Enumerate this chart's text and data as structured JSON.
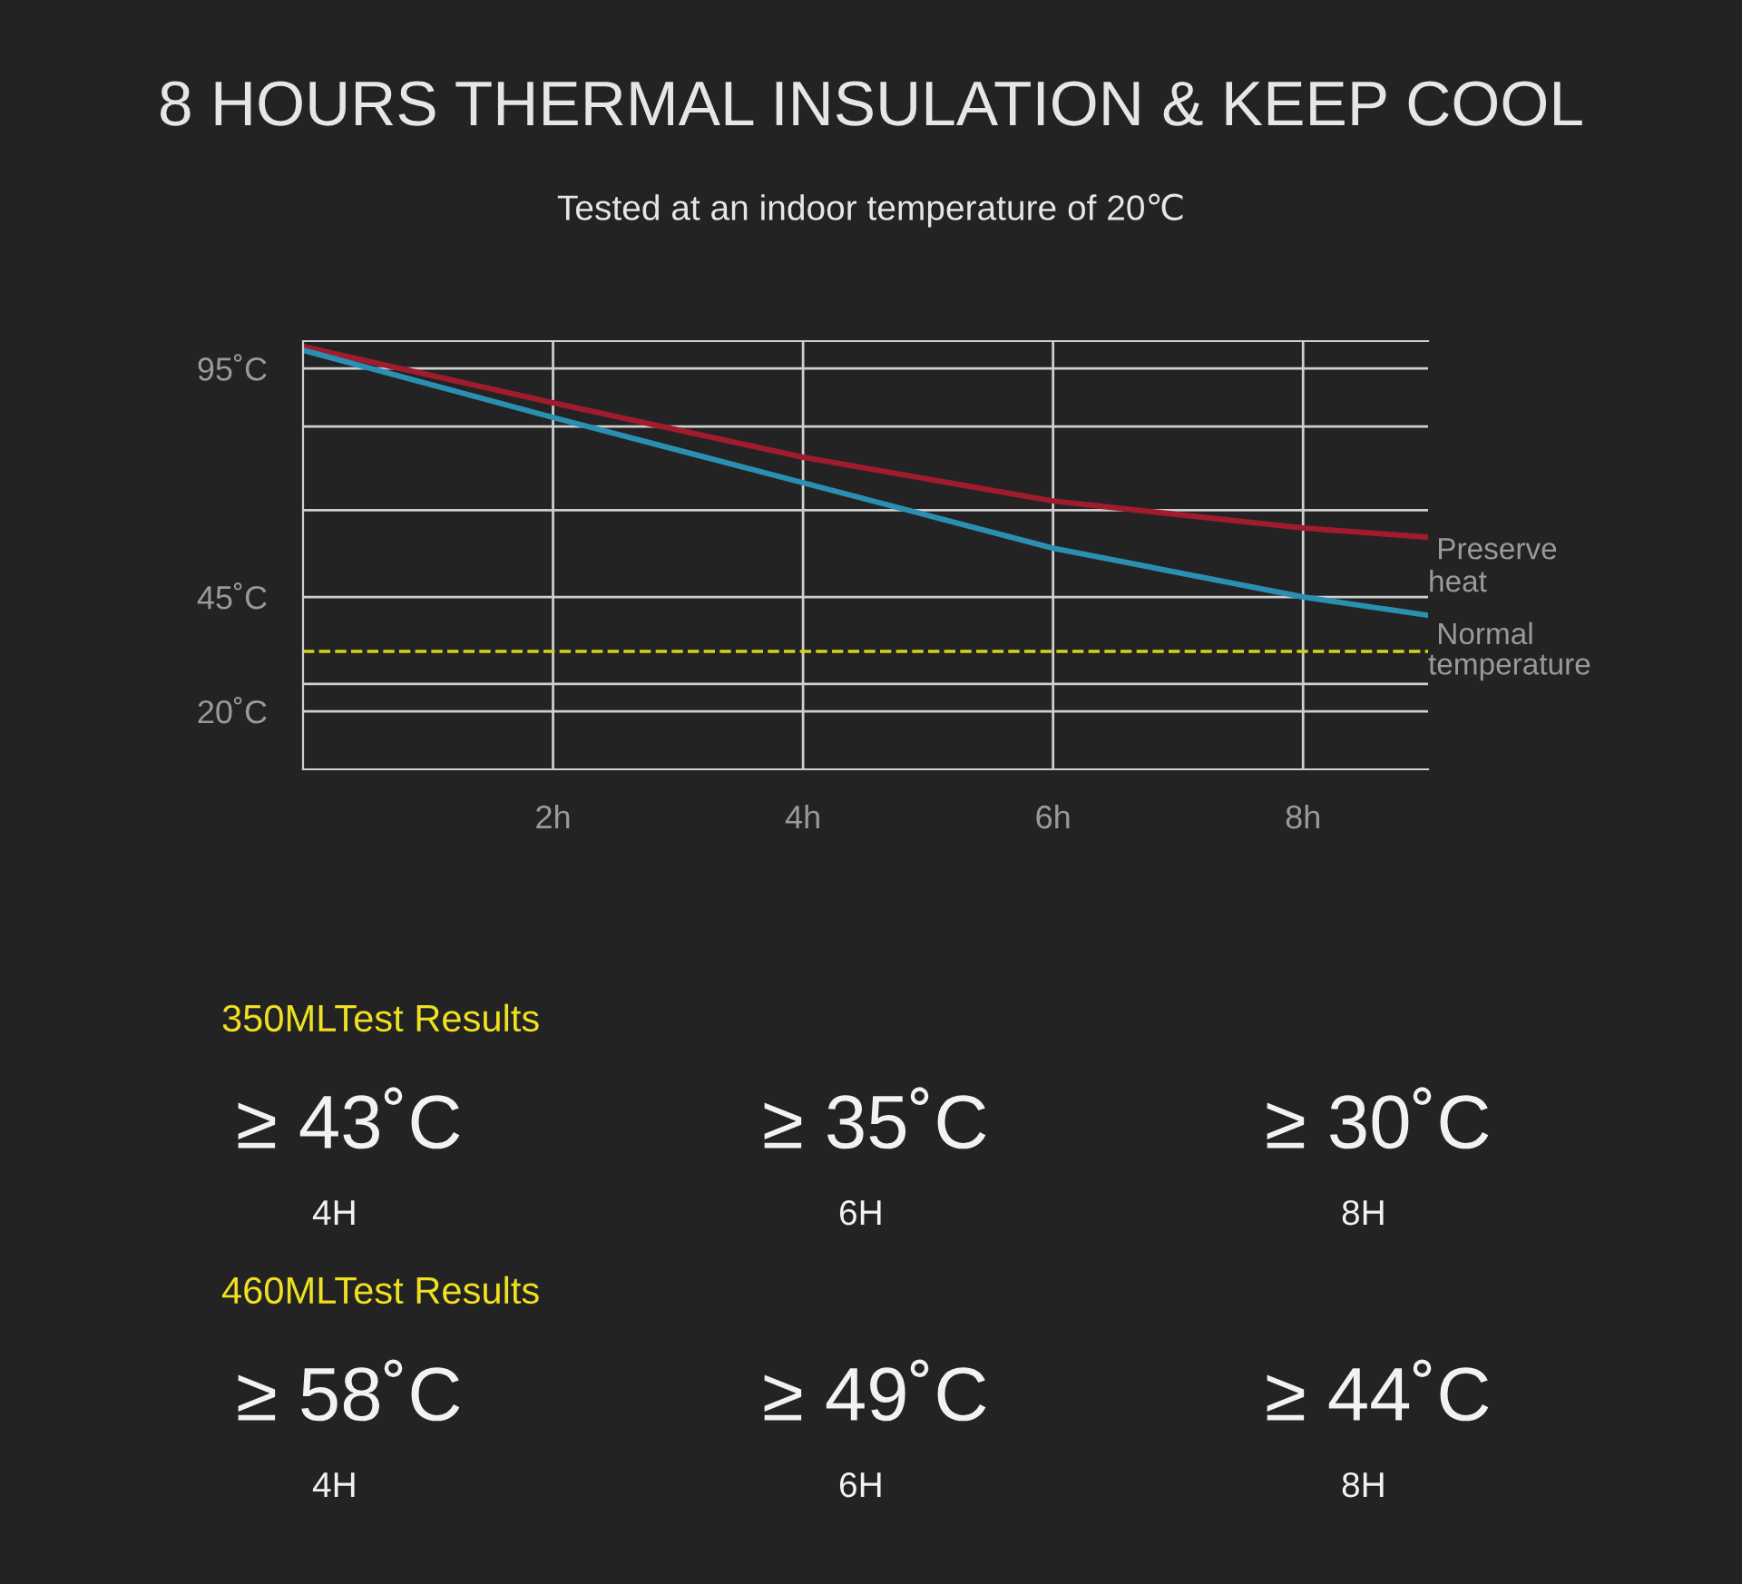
{
  "chart_data": {
    "type": "line",
    "title": "8 HOURS THERMAL INSULATION & KEEP COOL",
    "subtitle": "Tested at an indoor temperature of 20℃",
    "x": [
      0,
      2,
      4,
      6,
      8,
      9
    ],
    "series": [
      {
        "name": "Preserve heat",
        "color": "#a01c2c",
        "values": [
          99.8,
          87.5,
          75.6,
          66.0,
          60.1,
          58.1
        ]
      },
      {
        "color": "#2a8fb0",
        "values": [
          99.0,
          84.3,
          70.0,
          55.7,
          45.0,
          41.0
        ]
      }
    ],
    "xlim": [
      0,
      9
    ],
    "xticks": [
      {
        "value": 2,
        "label": "2h"
      },
      {
        "value": 4,
        "label": "4h"
      },
      {
        "value": 6,
        "label": "6h"
      },
      {
        "value": 8,
        "label": "8h"
      }
    ],
    "ylim": [
      7.3,
      101
    ],
    "yticks": [
      {
        "value": 20,
        "label": "20˚C"
      },
      {
        "value": 26,
        "label": null
      },
      {
        "value": 45,
        "label": "45˚C"
      },
      {
        "value": 64,
        "label": null
      },
      {
        "value": 82.3,
        "label": null
      },
      {
        "value": 95,
        "label": "95˚C"
      }
    ],
    "grid": true,
    "legend": false,
    "marker": "none",
    "line_style": "solid",
    "ref_lines": [
      {
        "axis": "y",
        "value": 33.1,
        "label": "Normal temperature",
        "color": "#d8d020",
        "line_style": "dashed"
      }
    ],
    "annotations": [
      "350MLTest Results",
      "≥ 43˚C",
      "4H",
      "≥ 35˚C",
      "6H",
      "≥ 30˚C",
      "8H",
      "460MLTest Results",
      "≥ 58˚C",
      "4H",
      "≥ 49˚C",
      "6H",
      "≥ 44˚C",
      "8H"
    ]
  }
}
